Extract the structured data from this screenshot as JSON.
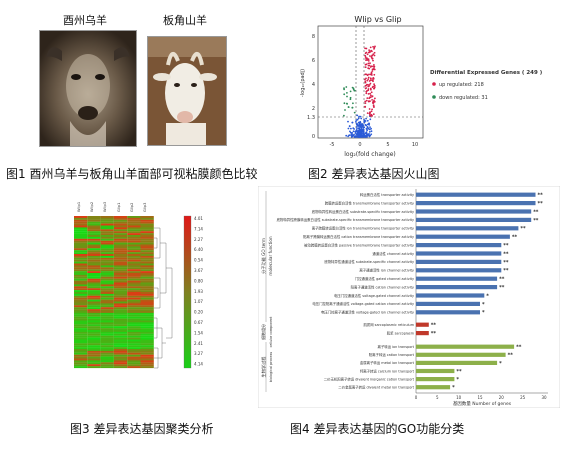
{
  "fig1": {
    "left_label": "酉州乌羊",
    "right_label": "板角山羊",
    "caption": "图1 酉州乌羊与板角山羊面部可视粘膜颜色比较"
  },
  "fig2": {
    "title": "Wlip vs Glip",
    "ylabel": "-log₁₀(padj)",
    "xlabel": "log₂(fold change)",
    "legend_title": "Differential Expressed Genes ( 249 )",
    "legend_up": "up regulated: 218",
    "legend_down": "down regulated: 31",
    "xticks": [
      "-5",
      "0",
      "5",
      "10"
    ],
    "yticks": [
      "0",
      "1.3",
      "2",
      "4",
      "6",
      "8"
    ],
    "caption": "图2 差异表达基因火山图",
    "colors": {
      "up": "#d6204a",
      "down": "#2e8b57",
      "ns": "#2b5bd7"
    }
  },
  "fig3": {
    "col_labels": [
      "Wlip1",
      "Wlip2",
      "Wlip3",
      "Glip1",
      "Glip2",
      "Glip3"
    ],
    "scale_values": [
      "4.01",
      "7.14",
      "2.27",
      "6.40",
      "0.54",
      "3.67",
      "0.80",
      "1.93",
      "1.07",
      "0.20",
      "0.67",
      "1.54",
      "2.41",
      "3.27",
      "4.14"
    ],
    "caption": "图3 差异表达基因聚类分析"
  },
  "fig4": {
    "caption": "图4 差异表达基因的GO功能分类",
    "x_axis_label": "基因数量 Number of genes",
    "xticks": [
      "0",
      "5",
      "10",
      "15",
      "20",
      "25",
      "30"
    ],
    "group_molecular": "分子功能 GO term",
    "group_molecular_en": "molecular function",
    "group_cellular": "细胞组分",
    "group_cellular_en": "cellular component",
    "group_biological": "生物学过程",
    "group_biological_en": "biological process"
  },
  "chart_data": {
    "type": "bar",
    "orientation": "horizontal",
    "xlabel": "基因数量 Number of genes",
    "xlim": [
      0,
      30
    ],
    "categories": [
      "转运蛋白活性 transporter activity",
      "跨膜转运蛋白活性 transmembrane transporter activity",
      "底物特异性转运蛋白活性 substrate-specific transporter activity",
      "底物特异性跨膜转运蛋白活性 substrate-specific transmembrane transporter activity",
      "离子跨膜转运蛋白活性 ion transmembrane transporter activity",
      "阳离子跨膜转运蛋白活性 cation transmembrane transporter activity",
      "被动跨膜转运蛋白活性 passive transmembrane transporter activity",
      "通道活性 channel activity",
      "底物特异性通道活性 substrate-specific channel activity",
      "离子通道活性 ion channel activity",
      "门控通道活性 gated channel activity",
      "阳离子通道活性 cation channel activity",
      "电压门控通道活性 voltage-gated channel activity",
      "电压门控阳离子通道活性 voltage-gated cation channel activity",
      "电压门控离子通道活性 voltage-gated ion channel activity",
      "肌质网 sarcoplasmic reticulum",
      "肌浆 sarcoplasm",
      "离子转运 ion transport",
      "阳离子转运 cation transport",
      "金属离子转运 metal ion transport",
      "钙离子转运 calcium ion transport",
      "二价无机阳离子转运 divalent inorganic cation transport",
      "二价金属离子转运 divalent metal ion transport"
    ],
    "values": [
      28,
      28,
      27,
      27,
      24,
      22,
      20,
      20,
      20,
      20,
      19,
      19,
      16,
      15,
      15,
      3,
      3,
      23,
      21,
      19,
      9,
      9,
      8
    ],
    "labels": [
      "**",
      "**",
      "**",
      "**",
      "**",
      "**",
      "**",
      "**",
      "**",
      "**",
      "**",
      "**",
      "*",
      "*",
      "*",
      "**",
      "**",
      "**",
      "**",
      "*",
      "**",
      "*",
      "*"
    ],
    "groups": [
      "molecular",
      "molecular",
      "molecular",
      "molecular",
      "molecular",
      "molecular",
      "molecular",
      "molecular",
      "molecular",
      "molecular",
      "molecular",
      "molecular",
      "molecular",
      "molecular",
      "molecular",
      "cellular",
      "cellular",
      "biological",
      "biological",
      "biological",
      "biological",
      "biological",
      "biological"
    ],
    "group_colors": {
      "molecular": "#4a72b0",
      "cellular": "#c0392b",
      "biological": "#8db04a"
    }
  }
}
